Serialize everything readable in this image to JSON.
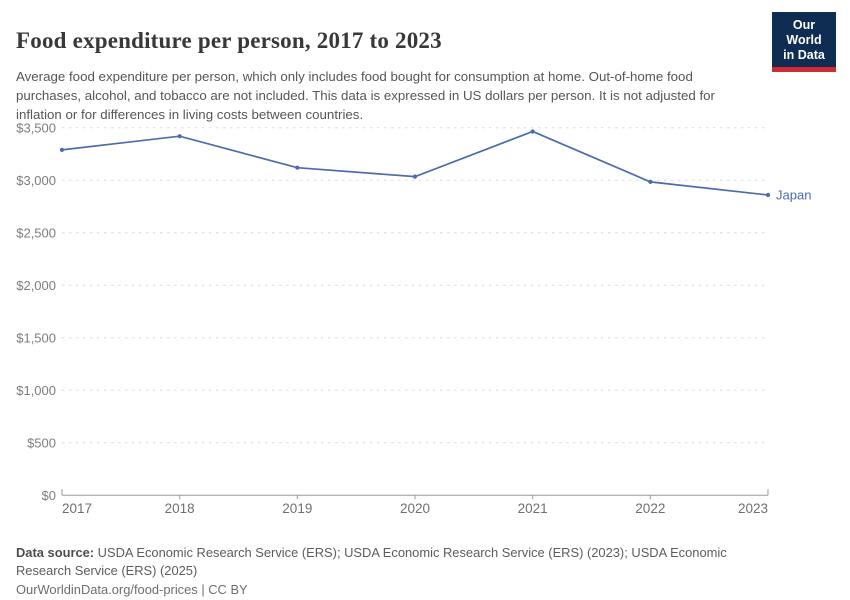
{
  "header": {
    "title": "Food expenditure per person, 2017 to 2023",
    "subtitle": "Average food expenditure per person, which only includes food bought for consumption at home. Out-of-home food purchases, alcohol, and tobacco are not included. This data is expressed in US dollars per person. It is not adjusted for inflation or for differences in living costs between countries.",
    "logo": {
      "line1": "Our World",
      "line2": "in Data",
      "bg_color": "#0f2d52",
      "accent_color": "#cf2b31"
    }
  },
  "chart_data": {
    "type": "line",
    "title": "Food expenditure per person, 2017 to 2023",
    "x": [
      "2017",
      "2018",
      "2019",
      "2020",
      "2021",
      "2022",
      "2023"
    ],
    "series": [
      {
        "name": "Japan",
        "color": "#4b6bad",
        "values": [
          3290,
          3420,
          3120,
          3035,
          3465,
          2985,
          2860
        ]
      }
    ],
    "ylim": [
      0,
      3500
    ],
    "yticks": [
      {
        "value": 0,
        "label": "$0"
      },
      {
        "value": 500,
        "label": "$500"
      },
      {
        "value": 1000,
        "label": "$1,000"
      },
      {
        "value": 1500,
        "label": "$1,500"
      },
      {
        "value": 2000,
        "label": "$2,000"
      },
      {
        "value": 2500,
        "label": "$2,500"
      },
      {
        "value": 3000,
        "label": "$3,000"
      },
      {
        "value": 3500,
        "label": "$3,500"
      }
    ],
    "xlabel": "",
    "ylabel": "",
    "grid": "horizontal-dashed",
    "legend_position": "end-of-line-label"
  },
  "footer": {
    "datasource_label": "Data source:",
    "datasource_text": " USDA Economic Research Service (ERS); USDA Economic Research Service (ERS) (2023); USDA Economic Research Service (ERS) (2025)",
    "license_text": "OurWorldinData.org/food-prices | CC BY"
  }
}
